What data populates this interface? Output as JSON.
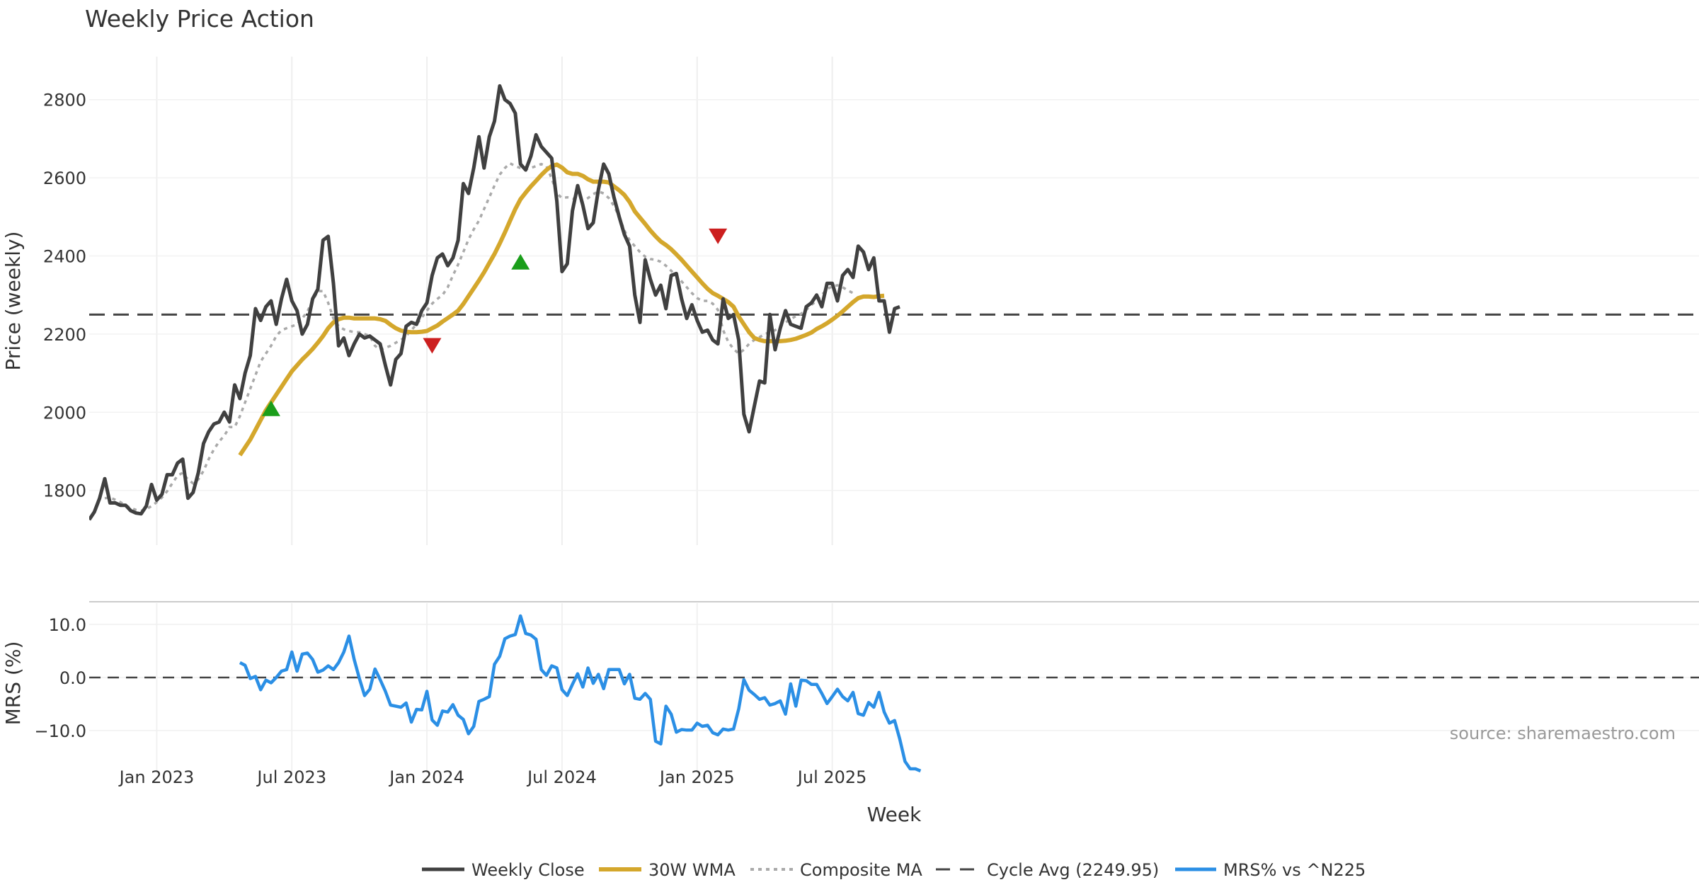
{
  "chart_data": {
    "type": "line",
    "title": "Weekly Price Action",
    "source_note": "source: sharemaestro.com",
    "xlabel": "Week",
    "x_ticks": [
      "Jan 2023",
      "Jul 2023",
      "Jan 2024",
      "Jul 2024",
      "Jan 2025",
      "Jul 2025"
    ],
    "price_panel": {
      "ylabel": "Price (weekly)",
      "ylim": [
        1660,
        2910
      ],
      "y_ticks": [
        1800,
        2000,
        2200,
        2400,
        2600,
        2800
      ],
      "cycle_avg": 2249.95
    },
    "mrs_panel": {
      "ylabel": "MRS (%)",
      "ylim": [
        -18,
        14
      ],
      "y_ticks": [
        10.0,
        0.0,
        -10.0
      ],
      "y_tick_labels": [
        "10.0",
        "0.0",
        "−10.0"
      ]
    },
    "series": [
      {
        "name": "Weekly Close",
        "color": "#404040",
        "start_week": 0,
        "values": [
          1725,
          1745,
          1780,
          1830,
          1768,
          1768,
          1762,
          1762,
          1748,
          1742,
          1740,
          1760,
          1815,
          1775,
          1790,
          1840,
          1840,
          1870,
          1880,
          1780,
          1795,
          1845,
          1920,
          1950,
          1970,
          1975,
          2000,
          1975,
          2070,
          2035,
          2100,
          2145,
          2265,
          2235,
          2270,
          2285,
          2225,
          2290,
          2340,
          2285,
          2260,
          2200,
          2225,
          2290,
          2315,
          2440,
          2450,
          2330,
          2170,
          2190,
          2145,
          2175,
          2200,
          2190,
          2195,
          2185,
          2175,
          2120,
          2070,
          2135,
          2150,
          2220,
          2230,
          2225,
          2260,
          2280,
          2350,
          2395,
          2405,
          2375,
          2395,
          2440,
          2585,
          2560,
          2625,
          2705,
          2625,
          2705,
          2745,
          2835,
          2800,
          2790,
          2765,
          2635,
          2620,
          2655,
          2710,
          2680,
          2665,
          2650,
          2540,
          2360,
          2380,
          2515,
          2580,
          2530,
          2470,
          2485,
          2570,
          2635,
          2610,
          2550,
          2500,
          2455,
          2425,
          2300,
          2230,
          2390,
          2340,
          2300,
          2325,
          2265,
          2350,
          2355,
          2290,
          2240,
          2275,
          2235,
          2205,
          2210,
          2185,
          2175,
          2290,
          2240,
          2250,
          2185,
          1995,
          1950,
          2015,
          2080,
          2075,
          2250,
          2160,
          2215,
          2260,
          2225,
          2220,
          2215,
          2270,
          2280,
          2300,
          2270,
          2330,
          2330,
          2285,
          2350,
          2365,
          2345,
          2425,
          2410,
          2365,
          2395,
          2285,
          2285,
          2205,
          2265,
          2270
        ]
      },
      {
        "name": "30W WMA",
        "color": "#d4a72c",
        "start_week": 29,
        "values": [
          1890,
          1910,
          1930,
          1955,
          1980,
          2005,
          2025,
          2045,
          2065,
          2085,
          2105,
          2120,
          2135,
          2148,
          2162,
          2178,
          2195,
          2215,
          2230,
          2238,
          2242,
          2242,
          2240,
          2240,
          2240,
          2240,
          2240,
          2238,
          2234,
          2224,
          2215,
          2209,
          2206,
          2205,
          2205,
          2206,
          2208,
          2215,
          2222,
          2232,
          2241,
          2250,
          2260,
          2277,
          2297,
          2317,
          2337,
          2358,
          2382,
          2405,
          2432,
          2460,
          2490,
          2520,
          2545,
          2562,
          2578,
          2592,
          2607,
          2620,
          2630,
          2634,
          2626,
          2614,
          2610,
          2610,
          2605,
          2596,
          2590,
          2590,
          2590,
          2588,
          2578,
          2568,
          2556,
          2538,
          2514,
          2498,
          2482,
          2465,
          2450,
          2437,
          2428,
          2417,
          2404,
          2390,
          2375,
          2360,
          2345,
          2330,
          2316,
          2305,
          2298,
          2290,
          2282,
          2270,
          2245,
          2225,
          2205,
          2190,
          2185,
          2182,
          2182,
          2182,
          2182,
          2183,
          2185,
          2188,
          2193,
          2198,
          2204,
          2213,
          2220,
          2228,
          2237,
          2247,
          2258,
          2270,
          2282,
          2292,
          2296,
          2296,
          2295,
          2297,
          2298
        ]
      },
      {
        "name": "Composite MA",
        "color": "#aaaaaa",
        "start_week": 3,
        "values": [
          1780,
          1782,
          1776,
          1770,
          1762,
          1755,
          1750,
          1748,
          1752,
          1760,
          1770,
          1782,
          1798,
          1818,
          1838,
          1845,
          1828,
          1818,
          1828,
          1850,
          1880,
          1905,
          1925,
          1940,
          1962,
          1962,
          1990,
          2025,
          2060,
          2095,
          2130,
          2150,
          2170,
          2195,
          2210,
          2215,
          2220,
          2225,
          2240,
          2258,
          2285,
          2310,
          2310,
          2280,
          2240,
          2220,
          2212,
          2208,
          2205,
          2205,
          2200,
          2195,
          2170,
          2160,
          2165,
          2170,
          2178,
          2185,
          2195,
          2210,
          2225,
          2242,
          2260,
          2278,
          2290,
          2300,
          2320,
          2350,
          2378,
          2410,
          2442,
          2468,
          2490,
          2520,
          2550,
          2580,
          2608,
          2625,
          2637,
          2630,
          2625,
          2622,
          2625,
          2630,
          2635,
          2630,
          2598,
          2560,
          2548,
          2550,
          2548,
          2542,
          2540,
          2548,
          2558,
          2565,
          2560,
          2548,
          2528,
          2500,
          2465,
          2440,
          2425,
          2410,
          2398,
          2392,
          2390,
          2385,
          2375,
          2362,
          2348,
          2335,
          2320,
          2305,
          2292,
          2285,
          2285,
          2278,
          2262,
          2210,
          2180,
          2162,
          2150,
          2160,
          2175,
          2185,
          2192,
          2200,
          2205,
          2210,
          2220,
          2230,
          2238,
          2246,
          2252,
          2262,
          2275,
          2285,
          2300,
          2315,
          2322,
          2325,
          2320,
          2312,
          2305
        ]
      },
      {
        "name": "Cycle Avg (2249.95)",
        "color": "#444444"
      },
      {
        "name": "MRS% vs ^N225",
        "color": "#2b8fe5",
        "start_week": 29,
        "values": [
          2.8,
          2.3,
          -0.2,
          0.2,
          -2.3,
          -0.5,
          -1.0,
          0.0,
          1.2,
          1.5,
          4.8,
          1.2,
          4.4,
          4.6,
          3.4,
          1.0,
          1.4,
          2.2,
          1.5,
          2.8,
          4.8,
          7.8,
          3.4,
          -0.2,
          -3.4,
          -2.2,
          1.6,
          -0.4,
          -2.6,
          -5.2,
          -5.4,
          -5.6,
          -4.8,
          -8.4,
          -6.0,
          -6.1,
          -2.6,
          -8.0,
          -9.0,
          -6.3,
          -6.5,
          -5.1,
          -7.1,
          -7.9,
          -10.6,
          -9.2,
          -4.5,
          -4.1,
          -3.6,
          2.5,
          4.0,
          7.3,
          7.8,
          8.1,
          11.6,
          8.3,
          8.0,
          7.2,
          1.5,
          0.4,
          2.2,
          1.8,
          -2.3,
          -3.4,
          -1.3,
          0.7,
          -1.8,
          1.8,
          -1.1,
          0.6,
          -2.1,
          1.5,
          1.5,
          1.5,
          -1.2,
          0.6,
          -3.9,
          -4.1,
          -3.0,
          -4.1,
          -12.0,
          -12.5,
          -5.4,
          -6.9,
          -10.3,
          -9.8,
          -9.9,
          -9.9,
          -8.6,
          -9.2,
          -9.0,
          -10.4,
          -10.8,
          -9.7,
          -9.9,
          -9.7,
          -5.9,
          -0.4,
          -2.4,
          -3.2,
          -4.1,
          -3.8,
          -5.2,
          -4.9,
          -4.4,
          -6.9,
          -1.2,
          -5.4,
          -0.5,
          -0.6,
          -1.3,
          -1.3,
          -3.0,
          -4.9,
          -3.6,
          -2.2,
          -3.6,
          -4.4,
          -2.8,
          -6.8,
          -7.1,
          -4.7,
          -5.6,
          -2.8,
          -6.5,
          -8.6,
          -8.1,
          -11.6,
          -15.8,
          -17.2,
          -17.2,
          -17.6
        ]
      }
    ],
    "signals": [
      {
        "type": "buy",
        "week": 35,
        "value": 2010,
        "color": "#1a9e1a"
      },
      {
        "type": "sell",
        "week": 66,
        "value": 2170,
        "color": "#cc1f1f"
      },
      {
        "type": "buy",
        "week": 83,
        "value": 2385,
        "color": "#1a9e1a"
      },
      {
        "type": "sell",
        "week": 121,
        "value": 2450,
        "color": "#cc1f1f"
      }
    ]
  }
}
